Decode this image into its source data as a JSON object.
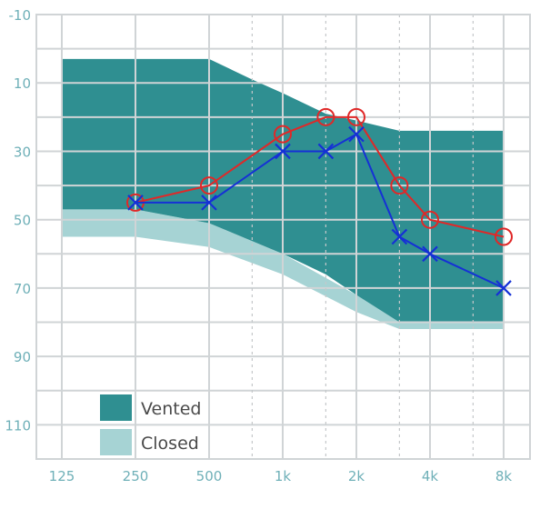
{
  "chart_data": {
    "type": "line",
    "title": "",
    "xlabel": "",
    "ylabel": "",
    "y_inverted": true,
    "ylim": [
      -10,
      120
    ],
    "y_ticks": [
      -10,
      10,
      30,
      50,
      70,
      90,
      110
    ],
    "y_tick_labels": [
      "-10",
      "10",
      "30",
      "50",
      "70",
      "90",
      "110"
    ],
    "y_gridlines": [
      -10,
      0,
      10,
      20,
      30,
      40,
      50,
      60,
      70,
      80,
      90,
      100,
      110,
      120
    ],
    "x_scale": "log",
    "x_ticks": [
      125,
      250,
      500,
      1000,
      2000,
      4000,
      8000
    ],
    "x_tick_labels": [
      "125",
      "250",
      "500",
      "1k",
      "2k",
      "4k",
      "8k"
    ],
    "x_minor_dotted": [
      750,
      1500,
      3000,
      6000
    ],
    "grid": true,
    "legend_position": "bottom-left",
    "bands": [
      {
        "name": "Closed",
        "color": "#a6d3d4",
        "top": [
          [
            125,
            47
          ],
          [
            250,
            47
          ],
          [
            500,
            51
          ],
          [
            1000,
            60
          ],
          [
            2000,
            72
          ],
          [
            3000,
            80
          ],
          [
            8000,
            80
          ]
        ],
        "bottom": [
          [
            125,
            55
          ],
          [
            250,
            55
          ],
          [
            500,
            58
          ],
          [
            1000,
            66
          ],
          [
            2000,
            77
          ],
          [
            3000,
            82
          ],
          [
            8000,
            82
          ]
        ]
      },
      {
        "name": "Vented",
        "color": "#2f8f91",
        "top": [
          [
            125,
            3
          ],
          [
            500,
            3
          ],
          [
            750,
            9
          ],
          [
            1000,
            13
          ],
          [
            1500,
            19
          ],
          [
            2000,
            21
          ],
          [
            3000,
            24
          ],
          [
            8000,
            24
          ]
        ],
        "bottom": [
          [
            125,
            47
          ],
          [
            250,
            47
          ],
          [
            500,
            51
          ],
          [
            1000,
            60
          ],
          [
            1500,
            66
          ],
          [
            2000,
            72
          ],
          [
            3000,
            80
          ],
          [
            8000,
            80
          ]
        ]
      }
    ],
    "series": [
      {
        "marker": "circle",
        "color": "#e02828",
        "points": [
          [
            250,
            45
          ],
          [
            500,
            40
          ],
          [
            1000,
            25
          ],
          [
            1500,
            20
          ],
          [
            2000,
            20
          ],
          [
            3000,
            40
          ],
          [
            4000,
            50
          ],
          [
            8000,
            55
          ]
        ]
      },
      {
        "marker": "x",
        "color": "#1530d6",
        "points": [
          [
            250,
            45
          ],
          [
            500,
            45
          ],
          [
            1000,
            30
          ],
          [
            1500,
            30
          ],
          [
            2000,
            25
          ],
          [
            3000,
            55
          ],
          [
            4000,
            60
          ],
          [
            8000,
            70
          ]
        ]
      }
    ],
    "legend": [
      {
        "label": "Vented",
        "color": "#2f8f91"
      },
      {
        "label": "Closed",
        "color": "#a6d3d4"
      }
    ]
  }
}
